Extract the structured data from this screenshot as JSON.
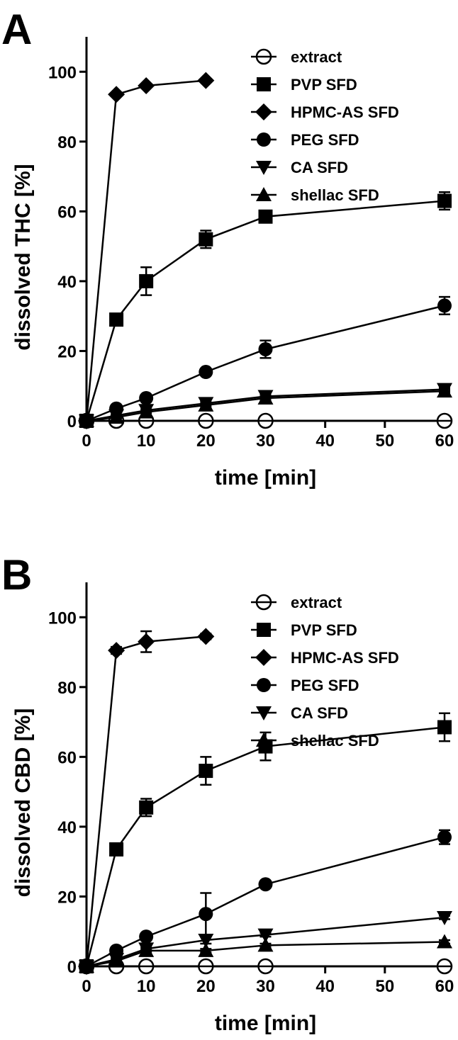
{
  "chart_data": [
    {
      "panel": "A",
      "type": "line",
      "xlabel": "time [min]",
      "ylabel": "dissolved THC [%]",
      "xticks": [
        0,
        10,
        20,
        30,
        40,
        50,
        60
      ],
      "yticks": [
        0,
        20,
        40,
        60,
        80,
        100
      ],
      "xlim": [
        0,
        60
      ],
      "ylim": [
        0,
        110
      ],
      "grid": false,
      "legend_position": "top-right",
      "series": [
        {
          "name": "extract",
          "marker": "circle-open",
          "x": [
            0,
            5,
            10,
            20,
            30,
            60
          ],
          "y": [
            0,
            0,
            0,
            0,
            0,
            0
          ],
          "err": [
            0,
            0,
            0,
            0,
            0,
            0
          ]
        },
        {
          "name": "PVP SFD",
          "marker": "square",
          "x": [
            0,
            5,
            10,
            20,
            30,
            60
          ],
          "y": [
            0,
            29,
            40,
            52,
            58.5,
            63
          ],
          "err": [
            0,
            0.8,
            4,
            2.5,
            1.5,
            2.5
          ]
        },
        {
          "name": "HPMC-AS SFD",
          "marker": "diamond",
          "x": [
            0,
            5,
            10,
            20
          ],
          "y": [
            0,
            93.5,
            96,
            97.5
          ],
          "err": [
            0,
            0.5,
            0.5,
            0.5
          ]
        },
        {
          "name": "PEG SFD",
          "marker": "circle",
          "x": [
            0,
            5,
            10,
            20,
            30,
            60
          ],
          "y": [
            0,
            3.5,
            6.5,
            14,
            20.5,
            33
          ],
          "err": [
            0,
            0.5,
            0.5,
            0.5,
            2.5,
            2.5
          ]
        },
        {
          "name": "CA SFD",
          "marker": "triangle-down",
          "x": [
            0,
            5,
            10,
            20,
            30,
            60
          ],
          "y": [
            0,
            1.5,
            3,
            5,
            7,
            9
          ],
          "err": [
            0,
            0.3,
            0.3,
            0.5,
            0.5,
            0.5
          ]
        },
        {
          "name": "shellac SFD",
          "marker": "triangle-up",
          "x": [
            0,
            5,
            10,
            20,
            30,
            60
          ],
          "y": [
            0,
            1,
            2.5,
            4.5,
            6.5,
            8.5
          ],
          "err": [
            0,
            0.3,
            0.3,
            0.5,
            0.5,
            0.5
          ]
        }
      ]
    },
    {
      "panel": "B",
      "type": "line",
      "xlabel": "time [min]",
      "ylabel": "dissolved CBD [%]",
      "xticks": [
        0,
        10,
        20,
        30,
        40,
        50,
        60
      ],
      "yticks": [
        0,
        20,
        40,
        60,
        80,
        100
      ],
      "xlim": [
        0,
        60
      ],
      "ylim": [
        0,
        110
      ],
      "grid": false,
      "legend_position": "top-right",
      "series": [
        {
          "name": "extract",
          "marker": "circle-open",
          "x": [
            0,
            5,
            10,
            20,
            30,
            60
          ],
          "y": [
            0,
            0,
            0,
            0,
            0,
            0
          ],
          "err": [
            0,
            0,
            0,
            0,
            0,
            0
          ]
        },
        {
          "name": "PVP SFD",
          "marker": "square",
          "x": [
            0,
            5,
            10,
            20,
            30,
            60
          ],
          "y": [
            0,
            33.5,
            45.5,
            56,
            63,
            68.5
          ],
          "err": [
            0,
            1,
            2.5,
            4,
            4,
            4
          ]
        },
        {
          "name": "HPMC-AS SFD",
          "marker": "diamond",
          "x": [
            0,
            5,
            10,
            20
          ],
          "y": [
            0,
            90.5,
            93,
            94.5
          ],
          "err": [
            0,
            1,
            3,
            0.8
          ]
        },
        {
          "name": "PEG SFD",
          "marker": "circle",
          "x": [
            0,
            5,
            10,
            20,
            30,
            60
          ],
          "y": [
            0,
            4.5,
            8.5,
            15,
            23.5,
            37
          ],
          "err": [
            0,
            0.5,
            1,
            6,
            0.8,
            2
          ]
        },
        {
          "name": "CA SFD",
          "marker": "triangle-down",
          "x": [
            0,
            5,
            10,
            20,
            30,
            60
          ],
          "y": [
            0,
            2,
            5,
            7.5,
            9,
            14
          ],
          "err": [
            0,
            0.3,
            0.5,
            1,
            0.5,
            0.5
          ]
        },
        {
          "name": "shellac SFD",
          "marker": "triangle-up",
          "x": [
            0,
            5,
            10,
            20,
            30,
            60
          ],
          "y": [
            0,
            1.5,
            4.5,
            4.5,
            6,
            7
          ],
          "err": [
            0,
            0.3,
            0.5,
            0.5,
            0.5,
            0.5
          ]
        }
      ]
    }
  ]
}
